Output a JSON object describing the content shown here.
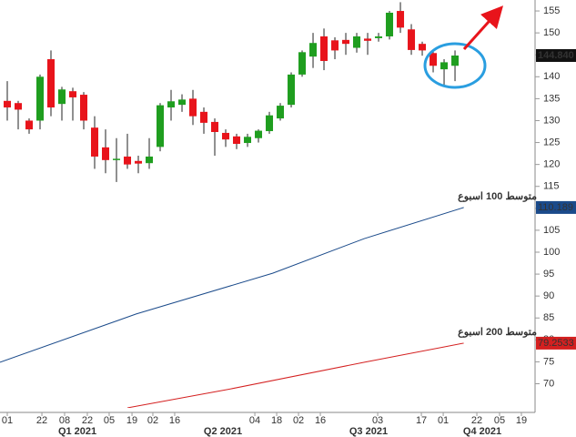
{
  "chart_data": {
    "type": "candlestick",
    "up_color": "#1f9e1f",
    "down_color": "#e8141b",
    "x": [
      0,
      1,
      2,
      3,
      4,
      5,
      6,
      7,
      8,
      9,
      10,
      11,
      12,
      13,
      14,
      15,
      16,
      17,
      18,
      19,
      20,
      21,
      22,
      23,
      24,
      25,
      26,
      27,
      28,
      29,
      30,
      31,
      32,
      33,
      34,
      35,
      36,
      37,
      38,
      39,
      40,
      41
    ],
    "open": [
      134.5,
      134,
      130,
      130,
      144,
      133.8,
      136.7,
      135.9,
      128.4,
      123.9,
      121,
      121.8,
      120.8,
      120.3,
      124,
      133,
      133.6,
      135,
      132,
      129.7,
      127.2,
      126.4,
      124.9,
      126,
      127.6,
      130.5,
      133.6,
      140.5,
      144.6,
      149.2,
      148.3,
      148.4,
      146.6,
      148.7,
      148.8,
      149.2,
      155,
      150.8,
      147.5,
      145.4,
      141.7,
      142.5
    ],
    "high": [
      139,
      134.5,
      130.5,
      140.5,
      146,
      137.7,
      137.5,
      136.5,
      131,
      128,
      126,
      127,
      122,
      126,
      134,
      137,
      136,
      137,
      133,
      130.5,
      128,
      127,
      127,
      128,
      132,
      134,
      141,
      146,
      150,
      151,
      149,
      150,
      150,
      150,
      150,
      155,
      157,
      152,
      148,
      146,
      144,
      146
    ],
    "low": [
      130,
      128,
      127,
      128,
      131,
      130,
      130,
      128,
      119,
      118,
      116,
      119,
      118,
      119,
      123,
      130,
      132,
      129,
      127,
      122,
      124,
      123.5,
      124,
      125,
      127,
      130,
      133,
      140,
      142,
      141.5,
      144,
      145,
      145.5,
      145,
      148,
      148.5,
      150,
      145,
      144.8,
      141,
      138,
      139
    ],
    "close": [
      133,
      132.5,
      128,
      140,
      133,
      137.1,
      135.3,
      130,
      121.8,
      121,
      121.3,
      120,
      120.2,
      121.8,
      133.5,
      134.4,
      134.8,
      131,
      129.5,
      127.4,
      125.7,
      124.7,
      126.3,
      127.7,
      131.2,
      133.4,
      140.5,
      145.6,
      147.7,
      143.6,
      146,
      147.5,
      149.2,
      148.2,
      149.2,
      154.6,
      151.2,
      146.1,
      146,
      142.5,
      143.3,
      144.84
    ],
    "last_price": {
      "value": 144.84,
      "label": "144.840"
    },
    "series": [
      {
        "name": "متوسط 100 اسبوع",
        "color": "#1a4a8a",
        "x": [
          -0.67,
          11.8,
          24.3,
          32.7,
          41.8
        ],
        "values": [
          74.9,
          85.9,
          95.2,
          103.1,
          110.189
        ]
      },
      {
        "name": "متوسط 200 اسبوع",
        "color": "#d42020",
        "x": [
          11,
          20.2,
          32.7,
          41.8
        ],
        "values": [
          64.5,
          68.7,
          74.9,
          79.2533
        ]
      }
    ],
    "xlim": [
      -0.667,
      48.33
    ],
    "ylim": [
      64.5,
      157.5
    ],
    "yticks": [
      70,
      75,
      80,
      85,
      90,
      95,
      100,
      105,
      110,
      115,
      120,
      125,
      130,
      135,
      140,
      145,
      150,
      155
    ],
    "xticks": [
      {
        "value": 0,
        "label": "01"
      },
      {
        "value": 3.17,
        "label": "22"
      },
      {
        "value": 5.25,
        "label": "08"
      },
      {
        "value": 7.33,
        "label": "22"
      },
      {
        "value": 9.33,
        "label": "05"
      },
      {
        "value": 11.42,
        "label": "19"
      },
      {
        "value": 13.33,
        "label": "02"
      },
      {
        "value": 15.33,
        "label": "16"
      },
      {
        "value": 22.67,
        "label": "04"
      },
      {
        "value": 24.67,
        "label": "18"
      },
      {
        "value": 26.67,
        "label": "02"
      },
      {
        "value": 28.67,
        "label": "16"
      },
      {
        "value": 33.92,
        "label": "03"
      },
      {
        "value": 37.92,
        "label": "17"
      },
      {
        "value": 39.92,
        "label": "01"
      },
      {
        "value": 43,
        "label": "22"
      },
      {
        "value": 45.08,
        "label": "05"
      },
      {
        "value": 47.08,
        "label": "19"
      }
    ],
    "quarter_ticks": [
      {
        "value": 6.42,
        "label": "Q1 2021"
      },
      {
        "value": 19.75,
        "label": "Q2 2021"
      },
      {
        "value": 33.08,
        "label": "Q3 2021"
      },
      {
        "value": 43.5,
        "label": "Q4 2021"
      }
    ]
  }
}
